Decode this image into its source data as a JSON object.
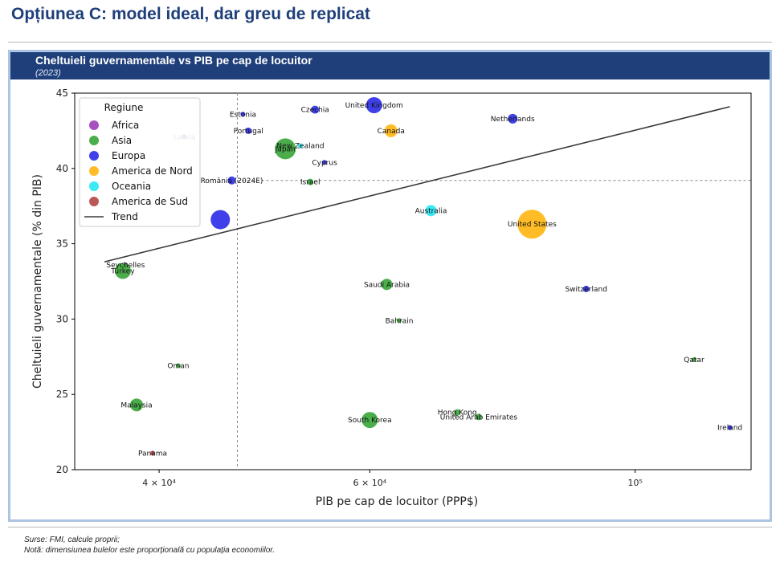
{
  "slide": {
    "title": "Opțiunea C: model ideal, dar greu de replicat"
  },
  "chart_header": {
    "title": "Cheltuieli guvernamentale vs PIB pe cap de locuitor",
    "subtitle": "(2023)"
  },
  "footnotes": {
    "source": "Surse: FMI, calcule proprii;",
    "note": "Notă: dimensiunea bulelor este proporțională cu populația economiilor."
  },
  "colors": {
    "Africa": "#9b30b5",
    "Asia": "#2ca02c",
    "Europa": "#1f1fe6",
    "America de Nord": "#ffb000",
    "Oceania": "#19e6f2",
    "America de Sud": "#b03a3a",
    "Trend": "#3a3a3a"
  },
  "chart_data": {
    "type": "scatter",
    "xlabel": "PIB pe cap de locuitor (PPP$)",
    "ylabel": "Cheltuieli guvernamentale (% din PIB)",
    "x_scale": "log",
    "xlim": [
      34000,
      125000
    ],
    "ylim": [
      20,
      45
    ],
    "x_ticks": [
      {
        "value": 40000,
        "label": "4 × 10⁴"
      },
      {
        "value": 60000,
        "label": "6 × 10⁴"
      },
      {
        "value": 100000,
        "label": "10⁵"
      }
    ],
    "y_ticks": [
      20,
      25,
      30,
      35,
      40,
      45
    ],
    "legend_title": "Regiune",
    "legend_entries": [
      "Africa",
      "Asia",
      "Europa",
      "America de Nord",
      "Oceania",
      "America de Sud",
      "Trend"
    ],
    "legend_position": "top-left",
    "reference_lines": {
      "x": 46500,
      "y": 39.2
    },
    "trend": {
      "x": [
        36000,
        120000
      ],
      "y": [
        33.8,
        44.1
      ]
    },
    "points": [
      {
        "label": "United Kingdom",
        "x": 60500,
        "y": 44.2,
        "region": "Europa",
        "size": 10
      },
      {
        "label": "Czechia",
        "x": 54000,
        "y": 43.9,
        "region": "Europa",
        "size": 5
      },
      {
        "label": "Estonia",
        "x": 47000,
        "y": 43.6,
        "region": "Europa",
        "size": 3
      },
      {
        "label": "Portugal",
        "x": 47500,
        "y": 42.5,
        "region": "Europa",
        "size": 4
      },
      {
        "label": "Latvia",
        "x": 42000,
        "y": 42.1,
        "region": "Europa",
        "size": 3
      },
      {
        "label": "Netherlands",
        "x": 79000,
        "y": 43.3,
        "region": "Europa",
        "size": 6
      },
      {
        "label": "Canada",
        "x": 62500,
        "y": 42.5,
        "region": "America de Nord",
        "size": 8
      },
      {
        "label": "New Zealand",
        "x": 52500,
        "y": 41.5,
        "region": "Oceania",
        "size": 3
      },
      {
        "label": "Japan",
        "x": 51000,
        "y": 41.3,
        "region": "Asia",
        "size": 13
      },
      {
        "label": "Cyprus",
        "x": 55000,
        "y": 40.4,
        "region": "Europa",
        "size": 3
      },
      {
        "label": "Israel",
        "x": 53500,
        "y": 39.1,
        "region": "Asia",
        "size": 4
      },
      {
        "label": "România (2024E)",
        "x": 46000,
        "y": 39.2,
        "region": "Europa",
        "size": 5
      },
      {
        "label": "Australia",
        "x": 67500,
        "y": 37.2,
        "region": "Oceania",
        "size": 7
      },
      {
        "label": "United States",
        "x": 82000,
        "y": 36.3,
        "region": "America de Nord",
        "size": 18
      },
      {
        "label": "",
        "x": 45000,
        "y": 36.6,
        "region": "Europa",
        "size": 12
      },
      {
        "label": "Seychelles",
        "x": 37500,
        "y": 33.6,
        "region": "Africa",
        "size": 3
      },
      {
        "label": "Turkey",
        "x": 37300,
        "y": 33.2,
        "region": "Asia",
        "size": 10
      },
      {
        "label": "Saudi Arabia",
        "x": 62000,
        "y": 32.3,
        "region": "Asia",
        "size": 7
      },
      {
        "label": "Switzerland",
        "x": 91000,
        "y": 32.0,
        "region": "Europa",
        "size": 4
      },
      {
        "label": "Bahrain",
        "x": 63500,
        "y": 29.9,
        "region": "Asia",
        "size": 3
      },
      {
        "label": "Qatar",
        "x": 112000,
        "y": 27.3,
        "region": "Asia",
        "size": 3
      },
      {
        "label": "Oman",
        "x": 41500,
        "y": 26.9,
        "region": "Asia",
        "size": 3
      },
      {
        "label": "Malaysia",
        "x": 38300,
        "y": 24.3,
        "region": "Asia",
        "size": 8
      },
      {
        "label": "Hong Kong",
        "x": 71000,
        "y": 23.8,
        "region": "Asia",
        "size": 4
      },
      {
        "label": "United Arab Emirates",
        "x": 74000,
        "y": 23.5,
        "region": "Asia",
        "size": 4
      },
      {
        "label": "South Korea",
        "x": 60000,
        "y": 23.3,
        "region": "Asia",
        "size": 10
      },
      {
        "label": "Ireland",
        "x": 120000,
        "y": 22.8,
        "region": "Europa",
        "size": 3
      },
      {
        "label": "Panama",
        "x": 39500,
        "y": 21.1,
        "region": "America de Sud",
        "size": 3
      }
    ]
  }
}
